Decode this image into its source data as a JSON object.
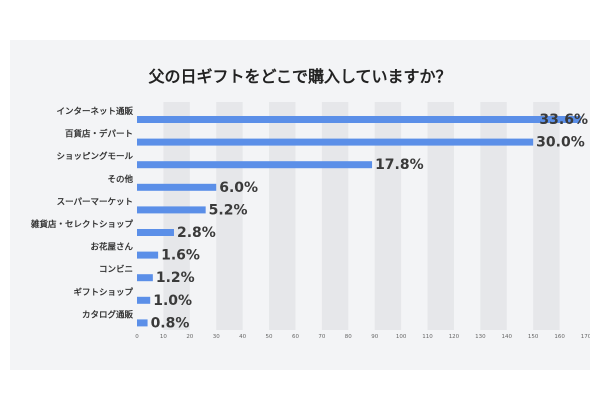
{
  "chart_data": {
    "type": "bar",
    "orientation": "horizontal",
    "title": "父の日ギフトをどこで購入していますか？",
    "categories": [
      "インターネット通販",
      "百貨店・デパート",
      "ショッピングモール",
      "その他",
      "スーパーマーケット",
      "雑貨店・セレクトショップ",
      "お花屋さん",
      "コンビニ",
      "ギフトショップ",
      "カタログ通販"
    ],
    "values": [
      33.6,
      30.0,
      17.8,
      6.0,
      5.2,
      2.8,
      1.6,
      1.2,
      1.0,
      0.8
    ],
    "value_labels": [
      "33.6%",
      "30.0%",
      "17.8%",
      "6.0%",
      "5.2%",
      "2.8%",
      "1.6%",
      "1.2%",
      "1.0%",
      "0.8%"
    ],
    "x_ticks": [
      "0",
      "10",
      "20",
      "30",
      "40",
      "50",
      "60",
      "70",
      "80",
      "90",
      "100",
      "110",
      "120",
      "130",
      "140",
      "150",
      "160",
      "170"
    ],
    "xlim": [
      0,
      170
    ],
    "scale_factor": 5,
    "grid": "alternating vertical bands",
    "bar_color": "#5b8fe8",
    "band_color": "#e6e7ea",
    "panel_color": "#f3f4f6"
  }
}
